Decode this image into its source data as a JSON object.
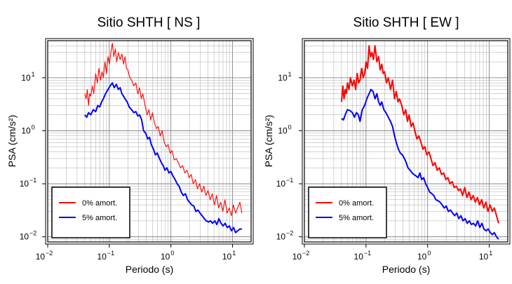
{
  "chart_data": [
    {
      "type": "line",
      "title": "Sitio SHTH [ NS ]",
      "xlabel": "Periodo (s)",
      "ylabel": "PSA (cm/s²)",
      "xscale": "log",
      "yscale": "log",
      "xlim": [
        0.01,
        20
      ],
      "ylim": [
        0.008,
        50
      ],
      "grid": true,
      "legend": "bottom-left",
      "xticks": [
        {
          "v": 0.01,
          "base": "10",
          "exp": "−2"
        },
        {
          "v": 0.1,
          "base": "10",
          "exp": "−1"
        },
        {
          "v": 1,
          "base": "10",
          "exp": "0"
        },
        {
          "v": 10,
          "base": "10",
          "exp": "1"
        }
      ],
      "yticks": [
        {
          "v": 0.01,
          "base": "10",
          "exp": "−2"
        },
        {
          "v": 0.1,
          "base": "10",
          "exp": "−1"
        },
        {
          "v": 1,
          "base": "10",
          "exp": "0"
        },
        {
          "v": 10,
          "base": "10",
          "exp": "1"
        }
      ],
      "series": [
        {
          "name": "0% amort.",
          "color": "#ff0000",
          "width": 1.1,
          "x": [
            0.04,
            0.042,
            0.044,
            0.046,
            0.048,
            0.05,
            0.053,
            0.056,
            0.06,
            0.064,
            0.068,
            0.072,
            0.076,
            0.08,
            0.085,
            0.09,
            0.095,
            0.1,
            0.106,
            0.112,
            0.118,
            0.125,
            0.132,
            0.14,
            0.15,
            0.16,
            0.17,
            0.18,
            0.19,
            0.2,
            0.215,
            0.23,
            0.25,
            0.27,
            0.29,
            0.31,
            0.33,
            0.35,
            0.38,
            0.41,
            0.44,
            0.47,
            0.5,
            0.54,
            0.58,
            0.62,
            0.67,
            0.72,
            0.78,
            0.84,
            0.9,
            0.97,
            1.05,
            1.13,
            1.22,
            1.32,
            1.43,
            1.55,
            1.68,
            1.82,
            1.97,
            2.13,
            2.3,
            2.5,
            2.7,
            2.92,
            3.16,
            3.42,
            3.7,
            4.0,
            4.33,
            4.69,
            5.07,
            5.49,
            5.94,
            6.43,
            6.96,
            7.53,
            8.15,
            8.82,
            9.55,
            10.3,
            11.2,
            12.1,
            13.1,
            14.2
          ],
          "y": [
            5.0,
            4.0,
            6.0,
            3.0,
            5.0,
            4.5,
            7.0,
            5.0,
            12,
            8.0,
            15,
            9.0,
            13,
            10,
            20,
            12,
            25,
            18,
            30,
            45,
            25,
            35,
            20,
            30,
            22,
            28,
            18,
            25,
            15,
            14,
            10,
            9.0,
            7.0,
            8.0,
            5.0,
            6.5,
            4.0,
            5.0,
            3.0,
            2.0,
            2.5,
            1.6,
            2.2,
            1.4,
            1.1,
            1.2,
            0.8,
            1.0,
            0.6,
            0.5,
            0.55,
            0.38,
            0.42,
            0.28,
            0.3,
            0.25,
            0.2,
            0.22,
            0.16,
            0.18,
            0.13,
            0.15,
            0.1,
            0.12,
            0.08,
            0.1,
            0.07,
            0.09,
            0.06,
            0.075,
            0.05,
            0.065,
            0.04,
            0.06,
            0.035,
            0.045,
            0.03,
            0.05,
            0.028,
            0.035,
            0.025,
            0.04,
            0.028,
            0.035,
            0.045,
            0.028
          ]
        },
        {
          "name": "5% amort.",
          "color": "#0000ff",
          "width": 2,
          "x": [
            0.04,
            0.043,
            0.046,
            0.05,
            0.055,
            0.06,
            0.065,
            0.07,
            0.075,
            0.08,
            0.087,
            0.095,
            0.103,
            0.112,
            0.12,
            0.13,
            0.14,
            0.15,
            0.16,
            0.17,
            0.18,
            0.195,
            0.21,
            0.23,
            0.25,
            0.27,
            0.29,
            0.31,
            0.335,
            0.36,
            0.39,
            0.42,
            0.45,
            0.48,
            0.52,
            0.56,
            0.6,
            0.65,
            0.7,
            0.75,
            0.8,
            0.86,
            0.93,
            1.0,
            1.08,
            1.17,
            1.26,
            1.36,
            1.47,
            1.59,
            1.72,
            1.86,
            2.01,
            2.17,
            2.35,
            2.54,
            2.75,
            2.97,
            3.21,
            3.47,
            3.75,
            4.06,
            4.39,
            4.75,
            5.14,
            5.55,
            6.0,
            6.49,
            7.02,
            7.59,
            8.21,
            8.88,
            9.6,
            10.4,
            11.2,
            12.1,
            13.1,
            14.2
          ],
          "y": [
            2.0,
            1.8,
            2.2,
            2.0,
            2.5,
            2.3,
            3.0,
            2.8,
            3.5,
            4.0,
            5.0,
            6.0,
            7.0,
            8.0,
            6.5,
            7.5,
            6.0,
            6.5,
            5.0,
            4.5,
            4.0,
            3.5,
            2.8,
            2.5,
            2.2,
            2.3,
            1.9,
            2.0,
            1.6,
            1.0,
            0.9,
            0.7,
            0.75,
            0.55,
            0.45,
            0.35,
            0.38,
            0.3,
            0.25,
            0.22,
            0.18,
            0.2,
            0.16,
            0.17,
            0.14,
            0.12,
            0.1,
            0.09,
            0.07,
            0.06,
            0.065,
            0.05,
            0.045,
            0.04,
            0.038,
            0.03,
            0.032,
            0.028,
            0.025,
            0.022,
            0.02,
            0.019,
            0.02,
            0.018,
            0.02,
            0.017,
            0.022,
            0.018,
            0.016,
            0.018,
            0.015,
            0.016,
            0.013,
            0.015,
            0.012,
            0.013,
            0.014,
            0.014
          ]
        }
      ]
    },
    {
      "type": "line",
      "title": "Sitio SHTH [ EW ]",
      "xlabel": "Periodo (s)",
      "ylabel": "PSA (cm/s²)",
      "xscale": "log",
      "yscale": "log",
      "xlim": [
        0.01,
        20
      ],
      "ylim": [
        0.008,
        50
      ],
      "grid": true,
      "legend": "bottom-left",
      "xticks": [
        {
          "v": 0.01,
          "base": "10",
          "exp": "−2"
        },
        {
          "v": 0.1,
          "base": "10",
          "exp": "−1"
        },
        {
          "v": 1,
          "base": "10",
          "exp": "0"
        },
        {
          "v": 10,
          "base": "10",
          "exp": "1"
        }
      ],
      "yticks": [
        {
          "v": 0.01,
          "base": "10",
          "exp": "−2"
        },
        {
          "v": 0.1,
          "base": "10",
          "exp": "−1"
        },
        {
          "v": 1,
          "base": "10",
          "exp": "0"
        },
        {
          "v": 10,
          "base": "10",
          "exp": "1"
        }
      ],
      "series": [
        {
          "name": "0% amort.",
          "color": "#ff0000",
          "width": 2,
          "x": [
            0.04,
            0.042,
            0.044,
            0.046,
            0.048,
            0.05,
            0.053,
            0.056,
            0.06,
            0.064,
            0.068,
            0.072,
            0.076,
            0.08,
            0.085,
            0.09,
            0.095,
            0.1,
            0.106,
            0.112,
            0.118,
            0.125,
            0.132,
            0.14,
            0.15,
            0.16,
            0.17,
            0.18,
            0.19,
            0.2,
            0.215,
            0.23,
            0.25,
            0.27,
            0.29,
            0.31,
            0.33,
            0.35,
            0.38,
            0.41,
            0.44,
            0.47,
            0.5,
            0.54,
            0.58,
            0.62,
            0.67,
            0.72,
            0.78,
            0.84,
            0.9,
            0.97,
            1.05,
            1.13,
            1.22,
            1.32,
            1.43,
            1.55,
            1.68,
            1.82,
            1.97,
            2.13,
            2.3,
            2.5,
            2.7,
            2.92,
            3.16,
            3.42,
            3.7,
            4.0,
            4.33,
            4.69,
            5.07,
            5.49,
            5.94,
            6.43,
            6.96,
            7.53,
            8.15,
            8.82,
            9.55,
            10.3,
            11.2,
            12.1,
            13.1,
            14.2
          ],
          "y": [
            3.5,
            7.0,
            4.0,
            6.0,
            5.0,
            8.0,
            6.0,
            10,
            7.0,
            9.0,
            6.0,
            12,
            8.0,
            9.0,
            15,
            10,
            12,
            20,
            15,
            40,
            25,
            30,
            22,
            40,
            20,
            25,
            14,
            18,
            12,
            13,
            8.0,
            10,
            6.0,
            9.0,
            4.0,
            5.5,
            3.5,
            4.0,
            3.0,
            2.0,
            2.5,
            1.5,
            2.0,
            1.2,
            1.4,
            1.0,
            0.7,
            0.8,
            0.6,
            0.45,
            0.5,
            0.35,
            0.4,
            0.3,
            0.22,
            0.25,
            0.18,
            0.2,
            0.15,
            0.16,
            0.12,
            0.13,
            0.1,
            0.11,
            0.085,
            0.09,
            0.075,
            0.08,
            0.06,
            0.085,
            0.055,
            0.07,
            0.05,
            0.06,
            0.045,
            0.055,
            0.04,
            0.05,
            0.035,
            0.045,
            0.03,
            0.04,
            0.03,
            0.035,
            0.025,
            0.018
          ]
        },
        {
          "name": "5% amort.",
          "color": "#0000ff",
          "width": 2,
          "x": [
            0.04,
            0.043,
            0.046,
            0.05,
            0.055,
            0.06,
            0.065,
            0.07,
            0.075,
            0.08,
            0.087,
            0.095,
            0.103,
            0.112,
            0.12,
            0.13,
            0.14,
            0.15,
            0.16,
            0.17,
            0.18,
            0.195,
            0.21,
            0.23,
            0.25,
            0.27,
            0.29,
            0.31,
            0.335,
            0.36,
            0.39,
            0.42,
            0.45,
            0.48,
            0.52,
            0.56,
            0.6,
            0.65,
            0.7,
            0.75,
            0.8,
            0.86,
            0.93,
            1.0,
            1.08,
            1.17,
            1.26,
            1.36,
            1.47,
            1.59,
            1.72,
            1.86,
            2.01,
            2.17,
            2.35,
            2.54,
            2.75,
            2.97,
            3.21,
            3.47,
            3.75,
            4.06,
            4.39,
            4.75,
            5.14,
            5.55,
            6.0,
            6.49,
            7.02,
            7.59,
            8.21,
            8.88,
            9.6,
            10.4,
            11.2,
            12.1,
            13.1,
            14.2
          ],
          "y": [
            1.7,
            1.6,
            2.0,
            2.5,
            2.4,
            2.2,
            1.8,
            2.2,
            2.0,
            1.5,
            2.5,
            3.0,
            4.0,
            5.0,
            6.0,
            5.5,
            4.0,
            5.0,
            3.5,
            3.0,
            3.5,
            2.5,
            2.2,
            1.8,
            1.5,
            1.2,
            0.8,
            0.6,
            0.45,
            0.38,
            0.35,
            0.3,
            0.25,
            0.2,
            0.18,
            0.16,
            0.15,
            0.14,
            0.13,
            0.16,
            0.12,
            0.13,
            0.1,
            0.085,
            0.07,
            0.065,
            0.06,
            0.05,
            0.048,
            0.045,
            0.04,
            0.035,
            0.038,
            0.03,
            0.032,
            0.028,
            0.025,
            0.028,
            0.022,
            0.025,
            0.02,
            0.022,
            0.018,
            0.02,
            0.017,
            0.018,
            0.016,
            0.02,
            0.015,
            0.018,
            0.014,
            0.013,
            0.014,
            0.012,
            0.011,
            0.012,
            0.01,
            0.009
          ]
        }
      ]
    }
  ]
}
